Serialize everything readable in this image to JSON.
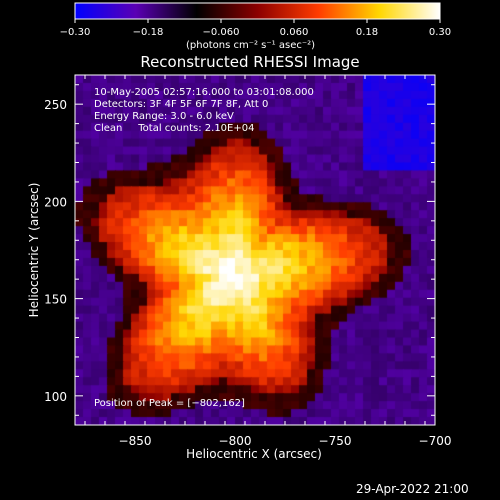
{
  "chart_data": {
    "type": "heatmap",
    "title": "Reconstructed RHESSI Image",
    "xlabel": "Heliocentric X (arcsec)",
    "ylabel": "Heliocentric Y (arcsec)",
    "xlim": [
      -880,
      -700
    ],
    "ylim": [
      85,
      265
    ],
    "x_ticks": [
      -850,
      -800,
      -750,
      -700
    ],
    "y_ticks": [
      100,
      150,
      200,
      250
    ],
    "x_tick_labels": [
      "−850",
      "−800",
      "−750",
      "−700"
    ],
    "y_tick_labels": [
      "100",
      "150",
      "200",
      "250"
    ],
    "colorbar": {
      "range": [
        -0.3,
        0.3
      ],
      "tick_values": [
        -0.3,
        -0.18,
        -0.06,
        0.06,
        0.18,
        0.3
      ],
      "tick_labels": [
        "−0.30",
        "−0.18",
        "−0.060",
        "0.060",
        "0.18",
        "0.30"
      ],
      "units": "(photons cm⁻² s⁻¹ asec⁻²)",
      "colormap": [
        "#0000ff",
        "#5a00b4",
        "#000000",
        "#8c0000",
        "#ff3c00",
        "#ffd600",
        "#ffffff"
      ]
    },
    "annotations": [
      "10-May-2005 02:57:16.000 to 03:01:08.000",
      "Detectors: 3F 4F 5F 6F 7F 8F, Att 0",
      "Energy Range: 3.0 - 6.0 keV",
      "Clean     Total counts: 2.10E+04"
    ],
    "peak_label": "Position of Peak = [−802,162]",
    "peak_position": [
      -802,
      162
    ],
    "peak_value": 0.3,
    "source_shape": "irregular blob centred near (-800, 160), radius about 60 arcsec, purple background"
  },
  "footer": {
    "timestamp": "29-Apr-2022 21:00"
  }
}
